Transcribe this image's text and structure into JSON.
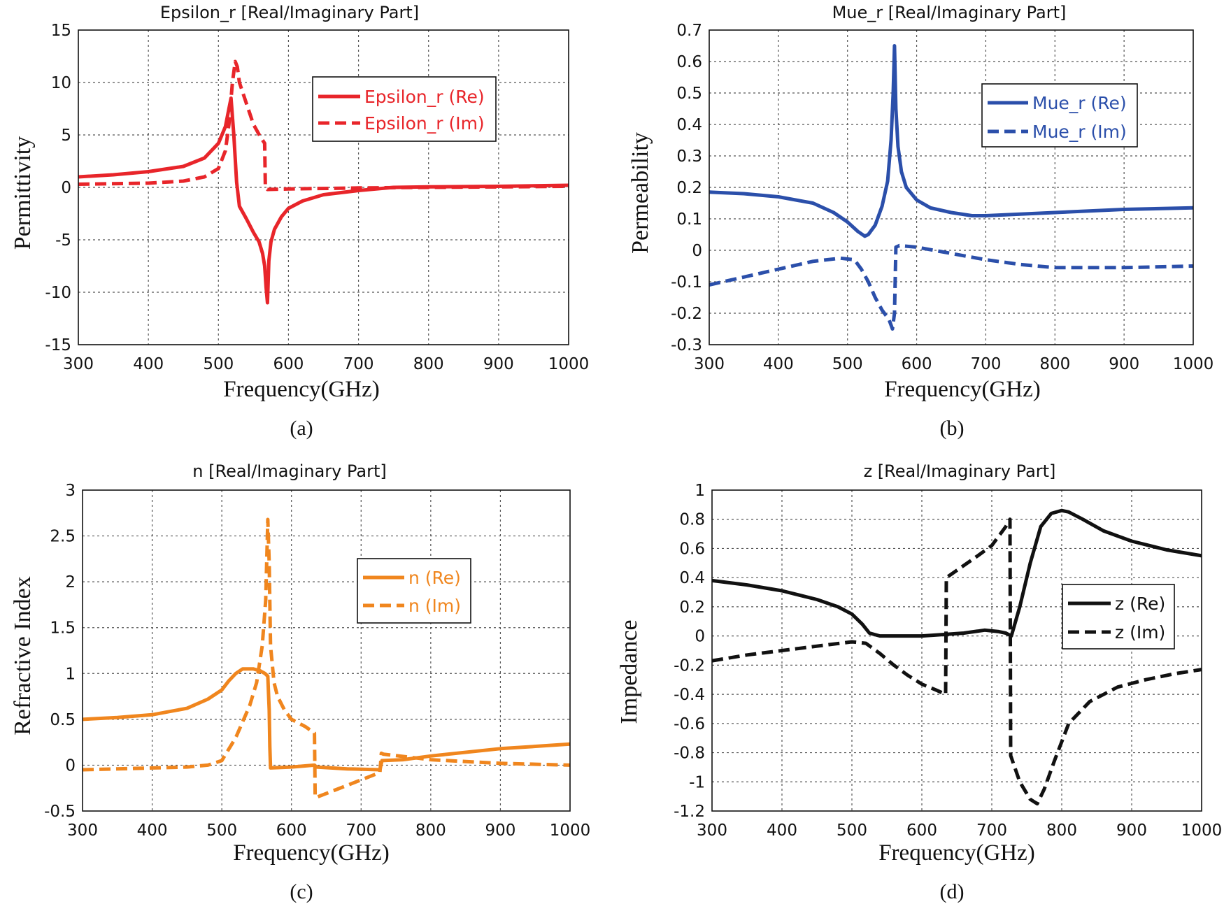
{
  "chart_data": [
    {
      "type": "line",
      "panel_caption": "(a)",
      "title": "Epsilon_r [Real/Imaginary Part]",
      "xlabel": "Frequency(GHz)",
      "ylabel": "Permittivity",
      "xlim": [
        300,
        1000
      ],
      "ylim": [
        -15,
        15
      ],
      "xticks": [
        300,
        400,
        500,
        600,
        700,
        800,
        900,
        1000
      ],
      "yticks": [
        -15,
        -10,
        -5,
        0,
        5,
        10,
        15
      ],
      "xtick_labels": [
        "300",
        "400",
        "500",
        "600",
        "700",
        "800",
        "900",
        "1000"
      ],
      "ytick_labels": [
        "-15",
        "-10",
        "-5",
        "0",
        "5",
        "10",
        "15"
      ],
      "grid": true,
      "legend_position": "top-right",
      "color": "#e8252a",
      "series": [
        {
          "name": "Epsilon_r (Re)",
          "style": "solid",
          "x": [
            300,
            350,
            400,
            450,
            480,
            500,
            510,
            515,
            518,
            522,
            526,
            530,
            540,
            550,
            558,
            563,
            566,
            568,
            570,
            572,
            575,
            580,
            590,
            600,
            620,
            650,
            700,
            750,
            800,
            900,
            1000
          ],
          "y": [
            1.0,
            1.2,
            1.5,
            2.0,
            2.8,
            4.2,
            5.8,
            7.5,
            8.5,
            5.0,
            0.5,
            -1.8,
            -3.0,
            -4.3,
            -5.2,
            -6.3,
            -7.5,
            -9.5,
            -11.0,
            -7.0,
            -5.2,
            -4.0,
            -2.8,
            -2.0,
            -1.3,
            -0.7,
            -0.3,
            0.0,
            0.05,
            0.1,
            0.2
          ]
        },
        {
          "name": "Epsilon_r (Im)",
          "style": "dashed",
          "x": [
            300,
            400,
            450,
            480,
            500,
            510,
            515,
            520,
            524,
            527,
            530,
            540,
            550,
            560,
            566,
            567,
            570,
            600,
            700,
            800,
            900,
            1000
          ],
          "y": [
            0.3,
            0.4,
            0.6,
            1.0,
            1.8,
            3.5,
            6.0,
            10.0,
            12.0,
            11.5,
            10.0,
            8.0,
            6.0,
            4.8,
            4.2,
            0.0,
            -0.2,
            -0.15,
            -0.05,
            0.0,
            0.05,
            0.1
          ]
        }
      ]
    },
    {
      "type": "line",
      "panel_caption": "(b)",
      "title": "Mue_r [Real/Imaginary Part]",
      "xlabel": "Frequency(GHz)",
      "ylabel": "Permeability",
      "xlim": [
        300,
        1000
      ],
      "ylim": [
        -0.3,
        0.7
      ],
      "xticks": [
        300,
        400,
        500,
        600,
        700,
        800,
        900,
        1000
      ],
      "yticks": [
        -0.3,
        -0.2,
        -0.1,
        0,
        0.1,
        0.2,
        0.3,
        0.4,
        0.5,
        0.6,
        0.7
      ],
      "xtick_labels": [
        "300",
        "400",
        "500",
        "600",
        "700",
        "800",
        "900",
        "1000"
      ],
      "ytick_labels": [
        "-0.3",
        "-0.2",
        "-0.1",
        "0",
        "0.1",
        "0.2",
        "0.3",
        "0.4",
        "0.5",
        "0.6",
        "0.7"
      ],
      "grid": true,
      "legend_position": "top-right",
      "color": "#2b4faa",
      "series": [
        {
          "name": "Mue_r (Re)",
          "style": "solid",
          "x": [
            300,
            350,
            400,
            450,
            480,
            500,
            515,
            525,
            530,
            540,
            550,
            558,
            563,
            566,
            568,
            570,
            573,
            578,
            585,
            600,
            620,
            650,
            680,
            700,
            750,
            800,
            900,
            1000
          ],
          "y": [
            0.185,
            0.18,
            0.17,
            0.15,
            0.12,
            0.09,
            0.06,
            0.045,
            0.05,
            0.08,
            0.14,
            0.22,
            0.35,
            0.5,
            0.65,
            0.45,
            0.33,
            0.25,
            0.2,
            0.16,
            0.135,
            0.12,
            0.11,
            0.11,
            0.115,
            0.12,
            0.13,
            0.135
          ]
        },
        {
          "name": "Mue_r (Im)",
          "style": "dashed",
          "x": [
            300,
            350,
            400,
            450,
            490,
            510,
            520,
            530,
            540,
            550,
            560,
            565,
            568,
            570,
            575,
            600,
            650,
            700,
            750,
            800,
            900,
            1000
          ],
          "y": [
            -0.11,
            -0.085,
            -0.06,
            -0.035,
            -0.025,
            -0.03,
            -0.06,
            -0.1,
            -0.15,
            -0.19,
            -0.22,
            -0.25,
            -0.2,
            0.01,
            0.015,
            0.01,
            -0.01,
            -0.03,
            -0.045,
            -0.055,
            -0.055,
            -0.05
          ]
        }
      ]
    },
    {
      "type": "line",
      "panel_caption": "(c)",
      "title": "n [Real/Imaginary Part]",
      "xlabel": "Frequency(GHz)",
      "ylabel": "Refractive Index",
      "xlim": [
        300,
        1000
      ],
      "ylim": [
        -0.5,
        3
      ],
      "xticks": [
        300,
        400,
        500,
        600,
        700,
        800,
        900,
        1000
      ],
      "yticks": [
        -0.5,
        0,
        0.5,
        1,
        1.5,
        2,
        2.5,
        3
      ],
      "xtick_labels": [
        "300",
        "400",
        "500",
        "600",
        "700",
        "800",
        "900",
        "1000"
      ],
      "ytick_labels": [
        "-0.5",
        "0",
        "0.5",
        "1",
        "1.5",
        "2",
        "2.5",
        "3"
      ],
      "grid": true,
      "legend_position": "right",
      "color": "#f0861e",
      "series": [
        {
          "name": "n (Re)",
          "style": "solid",
          "x": [
            300,
            350,
            400,
            450,
            480,
            500,
            510,
            520,
            530,
            545,
            555,
            562,
            566,
            568,
            569,
            570,
            600,
            633,
            636,
            680,
            727,
            730,
            760,
            800,
            900,
            1000
          ],
          "y": [
            0.5,
            0.52,
            0.55,
            0.62,
            0.72,
            0.82,
            0.92,
            1.0,
            1.05,
            1.05,
            1.03,
            1.0,
            0.97,
            0.6,
            0.2,
            -0.03,
            -0.02,
            0.0,
            -0.02,
            -0.04,
            -0.05,
            0.05,
            0.06,
            0.1,
            0.18,
            0.23
          ]
        },
        {
          "name": "n (Im)",
          "style": "dashed",
          "x": [
            300,
            400,
            450,
            480,
            500,
            520,
            540,
            550,
            558,
            563,
            566,
            568,
            570,
            575,
            580,
            590,
            600,
            620,
            633,
            634,
            636,
            680,
            727,
            729,
            732,
            800,
            900,
            1000
          ],
          "y": [
            -0.05,
            -0.03,
            -0.02,
            0.0,
            0.05,
            0.3,
            0.65,
            0.9,
            1.3,
            1.8,
            2.68,
            2.2,
            1.3,
            0.9,
            0.75,
            0.6,
            0.5,
            0.42,
            0.35,
            -0.35,
            -0.35,
            -0.22,
            -0.08,
            0.13,
            0.12,
            0.06,
            0.02,
            0.0
          ]
        }
      ]
    },
    {
      "type": "line",
      "panel_caption": "(d)",
      "title": "z [Real/Imaginary Part]",
      "xlabel": "Frequency(GHz)",
      "ylabel": "Impedance",
      "xlim": [
        300,
        1000
      ],
      "ylim": [
        -1.2,
        1
      ],
      "xticks": [
        300,
        400,
        500,
        600,
        700,
        800,
        900,
        1000
      ],
      "yticks": [
        -1.2,
        -1,
        -0.8,
        -0.6,
        -0.4,
        -0.2,
        0,
        0.2,
        0.4,
        0.6,
        0.8,
        1
      ],
      "xtick_labels": [
        "300",
        "400",
        "500",
        "600",
        "700",
        "800",
        "900",
        "1000"
      ],
      "ytick_labels": [
        "-1.2",
        "-1",
        "-0.8",
        "-0.6",
        "-0.4",
        "-0.2",
        "0",
        "0.2",
        "0.4",
        "0.6",
        "0.8",
        "1"
      ],
      "grid": true,
      "legend_position": "right",
      "color": "#111111",
      "series": [
        {
          "name": "z (Re)",
          "style": "solid",
          "x": [
            300,
            350,
            400,
            450,
            480,
            500,
            515,
            525,
            540,
            570,
            600,
            630,
            660,
            690,
            710,
            720,
            728,
            740,
            755,
            770,
            785,
            800,
            810,
            830,
            860,
            900,
            950,
            1000
          ],
          "y": [
            0.38,
            0.35,
            0.31,
            0.25,
            0.2,
            0.15,
            0.08,
            0.02,
            0.0,
            0.0,
            0.0,
            0.01,
            0.02,
            0.04,
            0.03,
            0.02,
            0.0,
            0.2,
            0.5,
            0.75,
            0.84,
            0.86,
            0.85,
            0.8,
            0.72,
            0.65,
            0.59,
            0.55
          ]
        },
        {
          "name": "z (Im)",
          "style": "dashed",
          "x": [
            300,
            350,
            400,
            450,
            500,
            520,
            540,
            560,
            580,
            600,
            620,
            634,
            635,
            650,
            680,
            700,
            720,
            726,
            727,
            740,
            755,
            765,
            775,
            790,
            810,
            840,
            880,
            920,
            960,
            1000
          ],
          "y": [
            -0.17,
            -0.13,
            -0.1,
            -0.07,
            -0.04,
            -0.05,
            -0.12,
            -0.2,
            -0.27,
            -0.33,
            -0.37,
            -0.4,
            0.4,
            0.45,
            0.55,
            0.62,
            0.75,
            0.8,
            -0.82,
            -1.0,
            -1.12,
            -1.15,
            -1.05,
            -0.85,
            -0.6,
            -0.45,
            -0.35,
            -0.3,
            -0.26,
            -0.23
          ]
        }
      ]
    }
  ]
}
